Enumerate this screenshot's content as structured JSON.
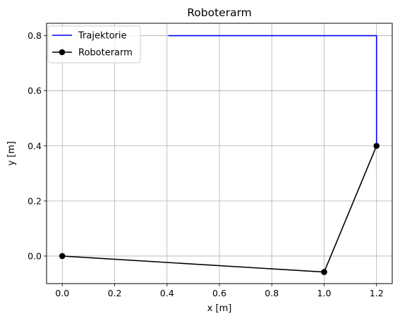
{
  "chart_data": {
    "type": "line",
    "title": "Roboterarm",
    "xlabel": "x [m]",
    "ylabel": "y [m]",
    "xlim": [
      -0.06,
      1.26
    ],
    "ylim": [
      -0.1,
      0.845
    ],
    "xticks": [
      0.0,
      0.2,
      0.4,
      0.6,
      0.8,
      1.0,
      1.2
    ],
    "xtick_labels": [
      "0.0",
      "0.2",
      "0.4",
      "0.6",
      "0.8",
      "1.0",
      "1.2"
    ],
    "yticks": [
      0.0,
      0.2,
      0.4,
      0.6,
      0.8
    ],
    "ytick_labels": [
      "0.0",
      "0.2",
      "0.4",
      "0.6",
      "0.8"
    ],
    "grid": true,
    "legend_position": "upper-left",
    "series": [
      {
        "name": "Trajektorie",
        "color": "#0000ff",
        "marker": "none",
        "x": [
          0.405,
          1.2,
          1.2
        ],
        "y": [
          0.8,
          0.8,
          0.4
        ]
      },
      {
        "name": "Roboterarm",
        "color": "#000000",
        "marker": "circle",
        "x": [
          0.0,
          1.0,
          1.2
        ],
        "y": [
          0.0,
          -0.058,
          0.4
        ]
      }
    ]
  }
}
